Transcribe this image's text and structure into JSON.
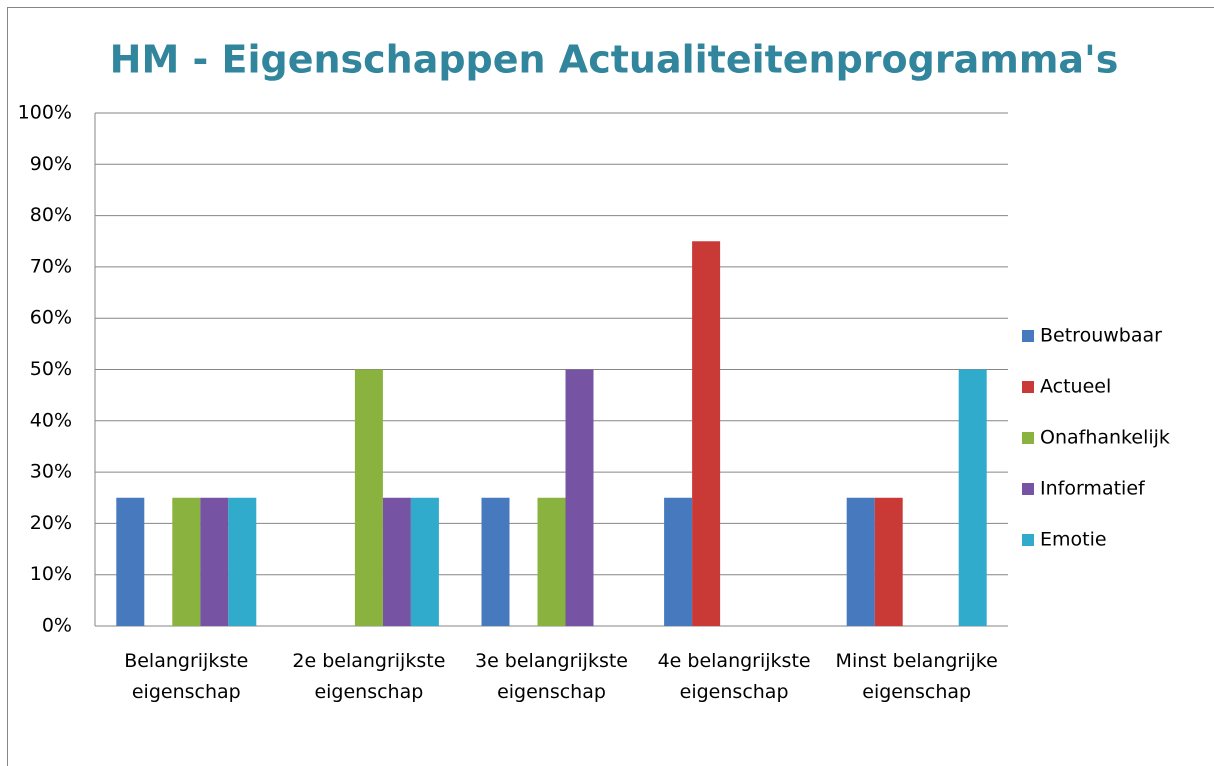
{
  "chart_data": {
    "type": "bar",
    "title": "HM - Eigenschappen Actualiteitenprogramma's",
    "categories": [
      "Belangrijkste eigenschap",
      "2e belangrijkste eigenschap",
      "3e belangrijkste eigenschap",
      "4e belangrijkste eigenschap",
      "Minst belangrijke eigenschap"
    ],
    "series": [
      {
        "name": "Betrouwbaar",
        "color": "#4679bd",
        "values": [
          25,
          0,
          25,
          25,
          25
        ]
      },
      {
        "name": "Actueel",
        "color": "#c93a37",
        "values": [
          0,
          0,
          0,
          75,
          25
        ]
      },
      {
        "name": "Onafhankelijk",
        "color": "#8ab23f",
        "values": [
          25,
          50,
          25,
          0,
          0
        ]
      },
      {
        "name": "Informatief",
        "color": "#7754a3",
        "values": [
          25,
          25,
          50,
          0,
          0
        ]
      },
      {
        "name": "Emotie",
        "color": "#30abcc",
        "values": [
          25,
          25,
          0,
          0,
          50
        ]
      }
    ],
    "ylim": [
      0,
      100
    ],
    "yticks": [
      {
        "value": 0,
        "label": "0%"
      },
      {
        "value": 10,
        "label": "10%"
      },
      {
        "value": 20,
        "label": "20%"
      },
      {
        "value": 30,
        "label": "30%"
      },
      {
        "value": 40,
        "label": "40%"
      },
      {
        "value": 50,
        "label": "50%"
      },
      {
        "value": 60,
        "label": "60%"
      },
      {
        "value": 70,
        "label": "70%"
      },
      {
        "value": 80,
        "label": "80%"
      },
      {
        "value": 90,
        "label": "90%"
      },
      {
        "value": 100,
        "label": "100%"
      }
    ],
    "grid": true,
    "legend": "right"
  }
}
